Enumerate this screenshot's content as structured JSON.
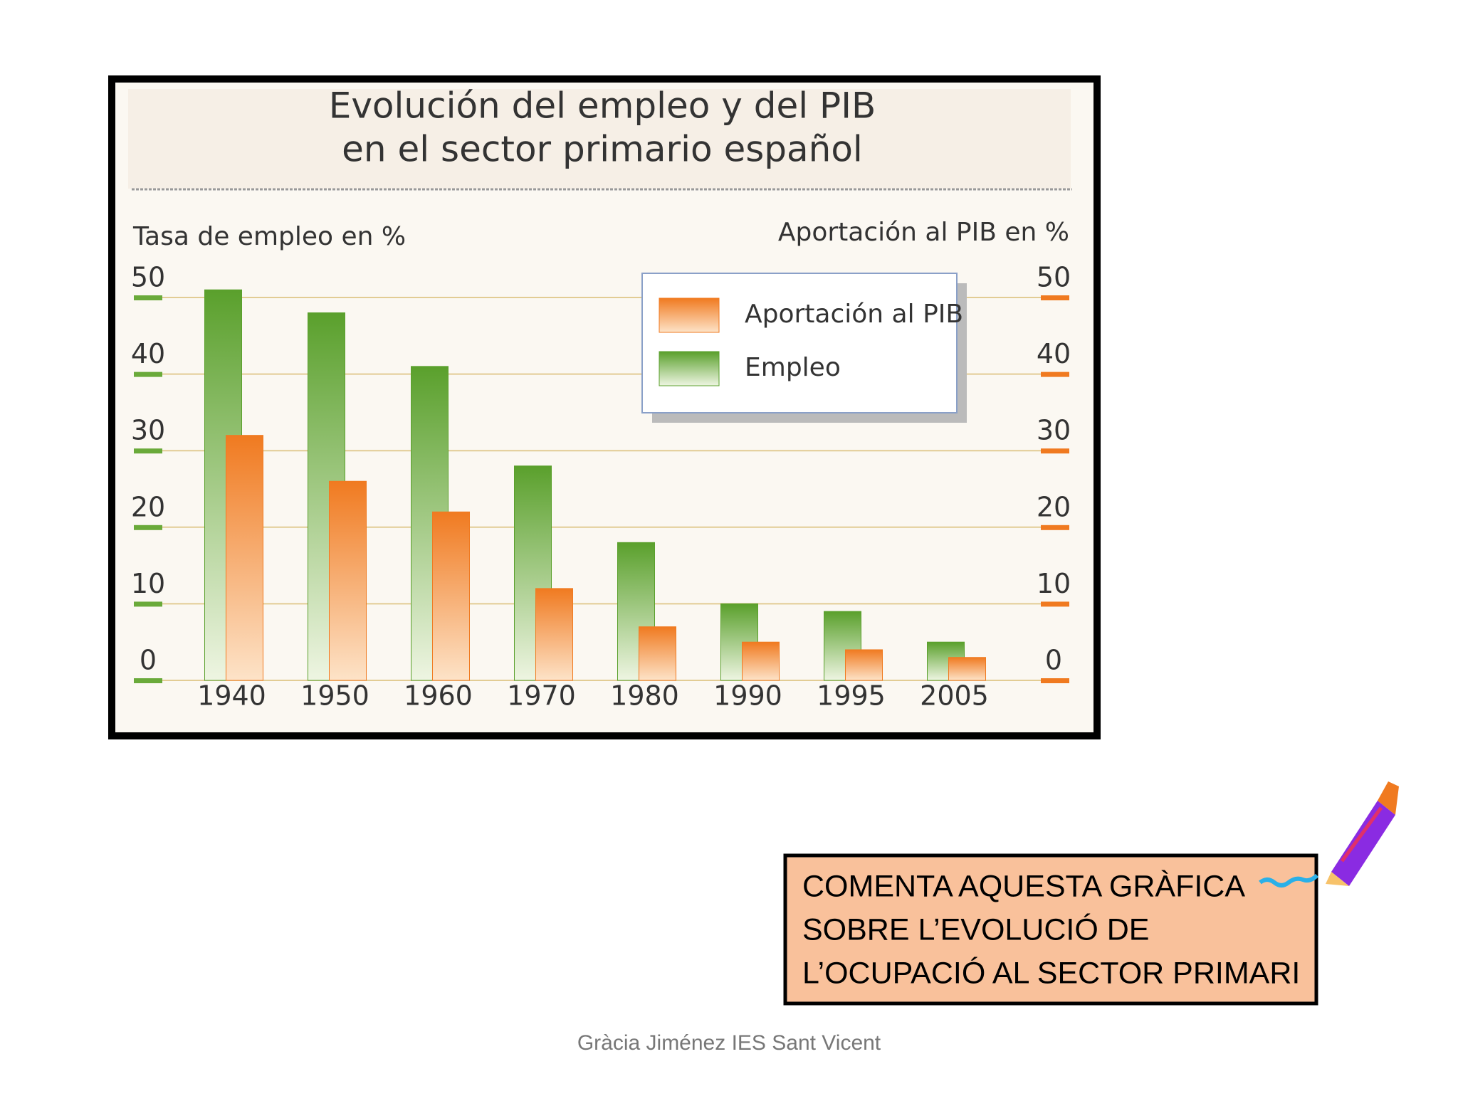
{
  "chart_data": {
    "type": "bar",
    "title": [
      "Evolución del empleo y del PIB",
      "en el sector primario español"
    ],
    "ylabel": "Tasa de empleo en %",
    "y2label": "Aportación al PIB en %",
    "categories": [
      "1940",
      "1950",
      "1960",
      "1970",
      "1980",
      "1990",
      "1995",
      "2005"
    ],
    "series": [
      {
        "name": "Aportación al PIB",
        "color": "#f07a20",
        "axis": "y2",
        "values": [
          32,
          26,
          22,
          12,
          7,
          5,
          4,
          3
        ]
      },
      {
        "name": "Empleo",
        "color": "#5aa02c",
        "values": [
          51,
          48,
          41,
          28,
          18,
          10,
          9,
          5
        ]
      }
    ],
    "ylim": [
      0,
      50
    ],
    "yticks": [
      0,
      10,
      20,
      30,
      40,
      50
    ],
    "y2lim": [
      0,
      50
    ],
    "y2ticks": [
      0,
      10,
      20,
      30,
      40,
      50
    ],
    "grid": true,
    "legend": "top-right"
  },
  "task": [
    "COMENTA AQUESTA GRÀFICA",
    "SOBRE L’EVOLUCIÓ DE",
    "L’OCUPACIÓ AL SECTOR PRIMARI"
  ],
  "footer": "Gràcia Jiménez IES Sant Vicent"
}
